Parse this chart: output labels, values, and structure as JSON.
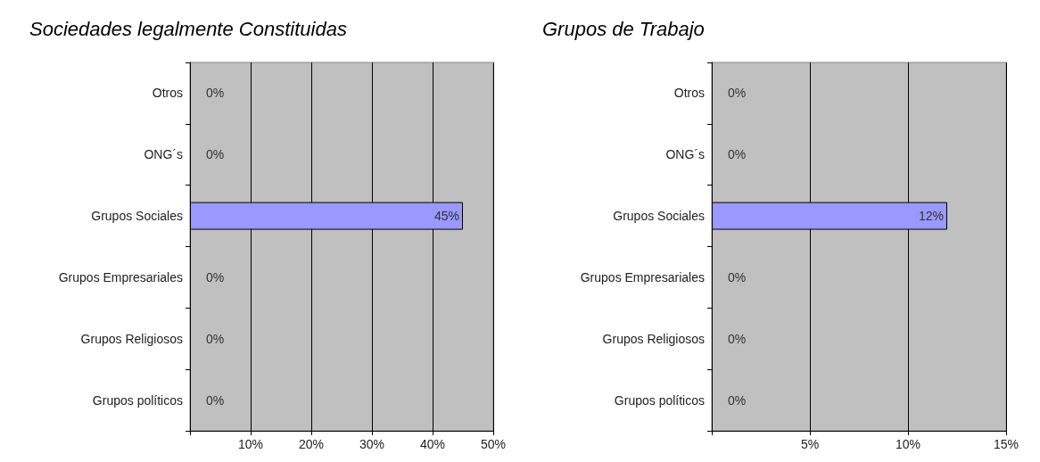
{
  "chart_data": [
    {
      "type": "bar",
      "orientation": "horizontal",
      "title": "Sociedades legalmente Constituidas",
      "categories": [
        "Otros",
        "ONG´s",
        "Grupos Sociales",
        "Grupos Empresariales",
        "Grupos Religiosos",
        "Grupos políticos"
      ],
      "values": [
        0,
        0,
        45,
        0,
        0,
        0
      ],
      "value_labels": [
        "0%",
        "0%",
        "45%",
        "0%",
        "0%",
        "0%"
      ],
      "color": "#9999ff",
      "xlim": [
        0,
        50
      ],
      "xticks": [
        {
          "value": 0,
          "label": null
        },
        {
          "value": 10,
          "label": "10%"
        },
        {
          "value": 20,
          "label": "20%"
        },
        {
          "value": 30,
          "label": "30%"
        },
        {
          "value": 40,
          "label": "40%"
        },
        {
          "value": 50,
          "label": "50%"
        }
      ],
      "grid": "x"
    },
    {
      "type": "bar",
      "orientation": "horizontal",
      "title": "Grupos de Trabajo",
      "categories": [
        "Otros",
        "ONG´s",
        "Grupos Sociales",
        "Grupos Empresariales",
        "Grupos Religiosos",
        "Grupos políticos"
      ],
      "values": [
        0,
        0,
        12,
        0,
        0,
        0
      ],
      "value_labels": [
        "0%",
        "0%",
        "12%",
        "0%",
        "0%",
        "0%"
      ],
      "color": "#9999ff",
      "xlim": [
        0,
        15
      ],
      "xticks": [
        {
          "value": 0,
          "label": null
        },
        {
          "value": 5,
          "label": "5%"
        },
        {
          "value": 10,
          "label": "10%"
        },
        {
          "value": 15,
          "label": "15%"
        }
      ],
      "grid": "x"
    }
  ]
}
